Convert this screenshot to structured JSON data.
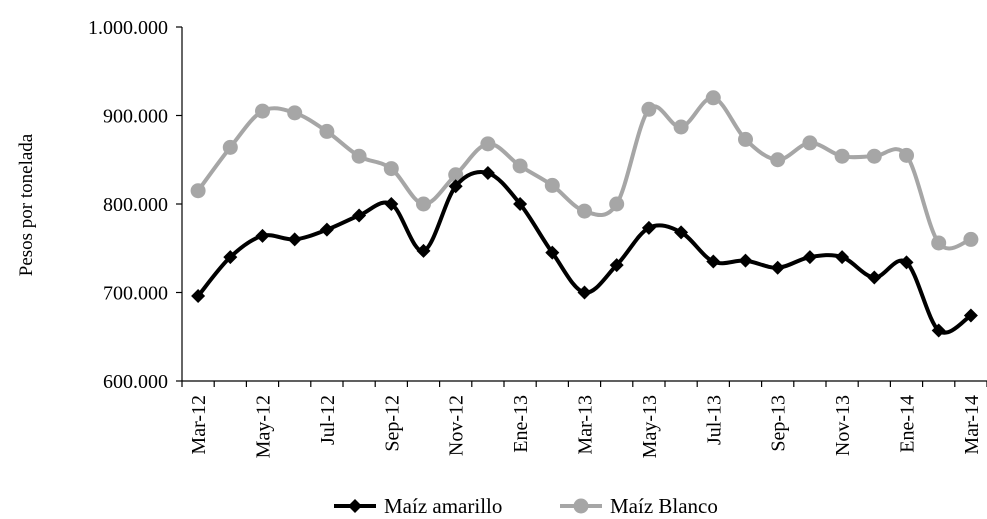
{
  "chart_data": {
    "type": "line",
    "title": "",
    "xlabel": "",
    "ylabel": "Pesos por tonelada",
    "ylim": [
      600000,
      1000000
    ],
    "yticks": [
      600000,
      700000,
      800000,
      900000,
      1000000
    ],
    "ytick_labels": [
      "600.000",
      "700.000",
      "800.000",
      "900.000",
      "1.000.000"
    ],
    "x": [
      "Mar-12",
      "Abr-12",
      "May-12",
      "Jun-12",
      "Jul-12",
      "Ago-12",
      "Sep-12",
      "Oct-12",
      "Nov-12",
      "Dic-12",
      "Ene-13",
      "Feb-13",
      "Mar-13",
      "Abr-13",
      "May-13",
      "Jun-13",
      "Jul-13",
      "Ago-13",
      "Sep-13",
      "Oct-13",
      "Nov-13",
      "Dic-13",
      "Ene-14",
      "Feb-14",
      "Mar-14"
    ],
    "xtick_labels": [
      "Mar-12",
      "May-12",
      "Jul-12",
      "Sep-12",
      "Nov-12",
      "Ene-13",
      "Mar-13",
      "May-13",
      "Jul-13",
      "Sep-13",
      "Nov-13",
      "Ene-14",
      "Mar-14"
    ],
    "grid": false,
    "legend_position": "bottom",
    "series": [
      {
        "name": "Maíz amarillo",
        "color": "#000000",
        "marker": "diamond",
        "values": [
          696000,
          740000,
          764000,
          760000,
          771000,
          787000,
          800000,
          747000,
          820000,
          835000,
          800000,
          745000,
          700000,
          731000,
          773000,
          768000,
          735000,
          736000,
          728000,
          740000,
          740000,
          717000,
          734000,
          657000,
          674000
        ]
      },
      {
        "name": "Maíz Blanco",
        "color": "#a6a6a6",
        "marker": "circle",
        "values": [
          815000,
          864000,
          905000,
          903000,
          882000,
          854000,
          840000,
          800000,
          833000,
          868000,
          843000,
          821000,
          792000,
          800000,
          907000,
          887000,
          920000,
          873000,
          850000,
          869000,
          854000,
          854000,
          855000,
          756000,
          760000
        ]
      }
    ]
  }
}
